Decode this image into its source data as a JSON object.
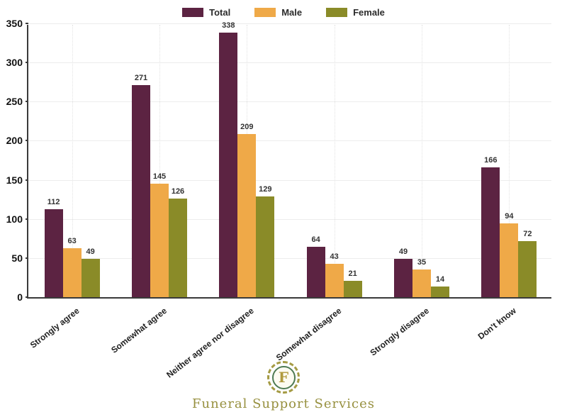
{
  "chart_data": {
    "type": "bar",
    "title": "",
    "xlabel": "",
    "ylabel": "",
    "categories": [
      "Strongly agree",
      "Somewhat agree",
      "Neither agree nor disagree",
      "Somewhat disagree",
      "Strongly disagree",
      "Don't know"
    ],
    "series": [
      {
        "name": "Total",
        "color": "#5c2342",
        "values": [
          112,
          271,
          338,
          64,
          49,
          166
        ]
      },
      {
        "name": "Male",
        "color": "#efa948",
        "values": [
          63,
          145,
          209,
          43,
          35,
          94
        ]
      },
      {
        "name": "Female",
        "color": "#8a8b28",
        "values": [
          49,
          126,
          129,
          21,
          14,
          72
        ]
      }
    ],
    "ylim": [
      0,
      350
    ],
    "ytick_step": 50,
    "yticks": [
      0,
      50,
      100,
      150,
      200,
      250,
      300,
      350
    ],
    "grid": "horizontal solid light gray; vertical dotted at category centers",
    "legend_position": "top-center",
    "bar_value_labels": true
  },
  "colors": {
    "axis": "#3a3a3a",
    "value_label": "#333333",
    "grid_h": "#ececec",
    "grid_v": "#e2e2e2",
    "brand_gold": "#97903f",
    "emblem_green": "#4e7a52"
  },
  "footer": {
    "logo_letter": "F",
    "brand": "Funeral Support Services"
  }
}
